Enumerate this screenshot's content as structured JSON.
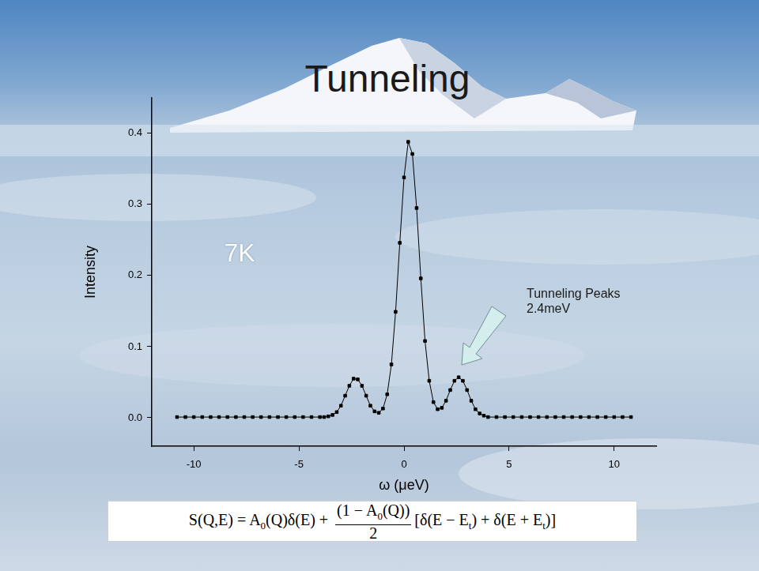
{
  "chart_data": {
    "type": "line",
    "title": "Tunneling",
    "xlabel": "ω (μeV)",
    "ylabel": "Intensity",
    "x": [
      -10.8,
      -10.4,
      -10,
      -9.6,
      -9.2,
      -8.8,
      -8.4,
      -8,
      -7.6,
      -7.2,
      -6.8,
      -6.4,
      -6,
      -5.6,
      -5.2,
      -4.8,
      -4.4,
      -4,
      -3.8,
      -3.6,
      -3.4,
      -3.2,
      -3,
      -2.8,
      -2.6,
      -2.4,
      -2.2,
      -2,
      -1.8,
      -1.6,
      -1.4,
      -1.2,
      -1,
      -0.8,
      -0.6,
      -0.4,
      -0.2,
      0,
      0.2,
      0.4,
      0.6,
      0.8,
      1,
      1.2,
      1.4,
      1.6,
      1.8,
      2,
      2.2,
      2.4,
      2.6,
      2.8,
      3,
      3.2,
      3.4,
      3.6,
      3.8,
      4,
      4.4,
      4.8,
      5.2,
      5.6,
      6,
      6.4,
      6.8,
      7.2,
      7.6,
      8,
      8.4,
      8.8,
      9.2,
      9.6,
      10,
      10.4,
      10.8
    ],
    "values": [
      0.001,
      0.001,
      0.001,
      0.001,
      0.001,
      0.001,
      0.001,
      0.001,
      0.001,
      0.001,
      0.001,
      0.001,
      0.001,
      0.001,
      0.001,
      0.001,
      0.001,
      0.001,
      0.001,
      0.002,
      0.004,
      0.008,
      0.017,
      0.031,
      0.045,
      0.055,
      0.054,
      0.045,
      0.031,
      0.017,
      0.009,
      0.007,
      0.013,
      0.033,
      0.075,
      0.149,
      0.246,
      0.338,
      0.388,
      0.371,
      0.295,
      0.196,
      0.108,
      0.052,
      0.022,
      0.012,
      0.014,
      0.024,
      0.039,
      0.052,
      0.057,
      0.052,
      0.039,
      0.024,
      0.012,
      0.006,
      0.003,
      0.001,
      0.001,
      0.001,
      0.001,
      0.001,
      0.001,
      0.001,
      0.001,
      0.001,
      0.001,
      0.001,
      0.001,
      0.001,
      0.001,
      0.001,
      0.001,
      0.001,
      0.001
    ],
    "color": "#000000",
    "marker": "square",
    "line_style": "solid",
    "xlim": [
      -12,
      12
    ],
    "xticks": [
      -10,
      -5,
      0,
      5,
      10
    ],
    "ylim": [
      -0.04,
      0.45
    ],
    "yticks": [
      {
        "value": 0,
        "label": "0.0"
      },
      0.1,
      0.2,
      0.3,
      0.4
    ],
    "grid": false,
    "annotations": [
      {
        "text": [
          "7K"
        ]
      },
      {
        "text": [
          "Tunneling Peaks",
          "2.4meV"
        ]
      }
    ],
    "formula": [
      "S(Q,E) = A",
      {
        "sub": "0"
      },
      "(Q)δ(E) + ",
      {
        "frac": [
          [
            "(1 − A",
            {
              "sub": "0"
            },
            "(Q))"
          ],
          [
            "2"
          ]
        ]
      },
      "[δ(E − E",
      {
        "sub": "t"
      },
      ") + δ(E + E",
      {
        "sub": "t"
      },
      ")]"
    ]
  }
}
